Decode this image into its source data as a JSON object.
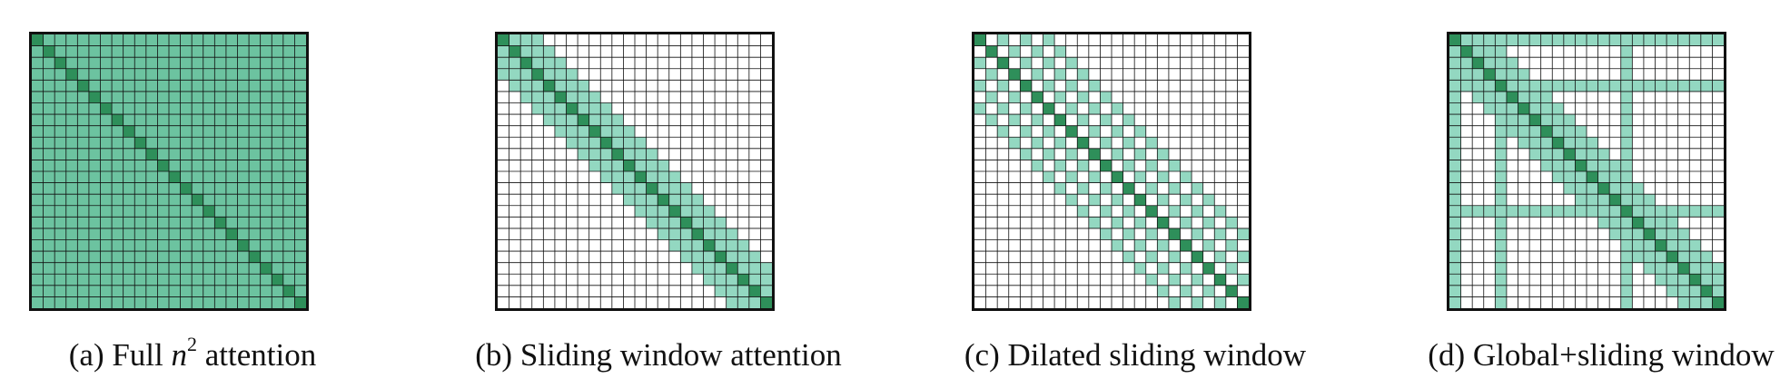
{
  "colors": {
    "background": "#ffffff",
    "full_fill": "#6cc3a0",
    "window_fill": "#93d8c1",
    "diagonal_fill": "#2e8f5a",
    "grid_line": "#111111",
    "border": "#111111"
  },
  "diagrams": [
    {
      "pattern": "full",
      "caption_before": "(a) Full ",
      "caption_math": "n",
      "caption_sup": "2",
      "caption_after": " attention"
    },
    {
      "pattern": "sliding",
      "caption_before": "(b) Sliding window attention",
      "caption_math": "",
      "caption_sup": "",
      "caption_after": ""
    },
    {
      "pattern": "dilated",
      "caption_before": "(c) Dilated sliding window",
      "caption_math": "",
      "caption_sup": "",
      "caption_after": ""
    },
    {
      "pattern": "global",
      "caption_before": "(d) Global+sliding window",
      "caption_math": "",
      "caption_sup": "",
      "caption_after": ""
    }
  ]
}
